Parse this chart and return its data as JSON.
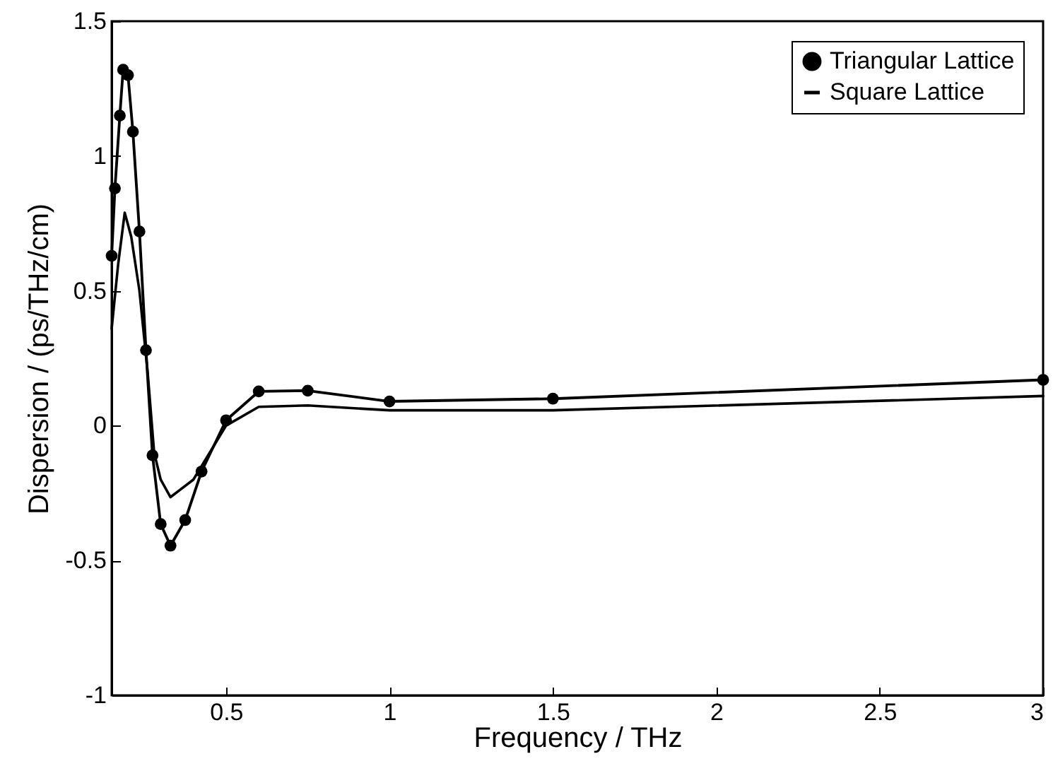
{
  "chart_data": {
    "type": "line",
    "xlabel": "Frequency / THz",
    "ylabel": "Dispersion / (ps/THz/cm)",
    "xlim": [
      0.15,
      3
    ],
    "xticks": [
      0.5,
      1,
      1.5,
      2,
      2.5,
      3
    ],
    "ylim": [
      -1,
      1.5
    ],
    "yticks": [
      -1,
      -0.5,
      0,
      0.5,
      1,
      1.5
    ],
    "grid": false,
    "legend": "top right",
    "series": [
      {
        "name": "Triangular Lattice",
        "color": "#000000",
        "marker": "circle",
        "x": [
          0.15,
          0.16,
          0.175,
          0.185,
          0.2,
          0.215,
          0.235,
          0.255,
          0.275,
          0.3,
          0.33,
          0.375,
          0.425,
          0.5,
          0.6,
          0.75,
          1,
          1.5,
          3
        ],
        "values": [
          0.63,
          0.88,
          1.15,
          1.32,
          1.3,
          1.09,
          0.72,
          0.28,
          -0.11,
          -0.365,
          -0.445,
          -0.35,
          -0.17,
          0.02,
          0.127,
          0.13,
          0.09,
          0.1,
          0.17
        ]
      },
      {
        "name": "Square Lattice",
        "color": "#000000",
        "marker": "none",
        "x": [
          0.15,
          0.17,
          0.19,
          0.21,
          0.235,
          0.26,
          0.28,
          0.3,
          0.33,
          0.4,
          0.5,
          0.6,
          0.75,
          1,
          1.5,
          3
        ],
        "values": [
          0.36,
          0.6,
          0.79,
          0.7,
          0.5,
          0.2,
          -0.1,
          -0.2,
          -0.265,
          -0.2,
          0,
          0.07,
          0.075,
          0.057,
          0.057,
          0.11
        ]
      }
    ]
  }
}
